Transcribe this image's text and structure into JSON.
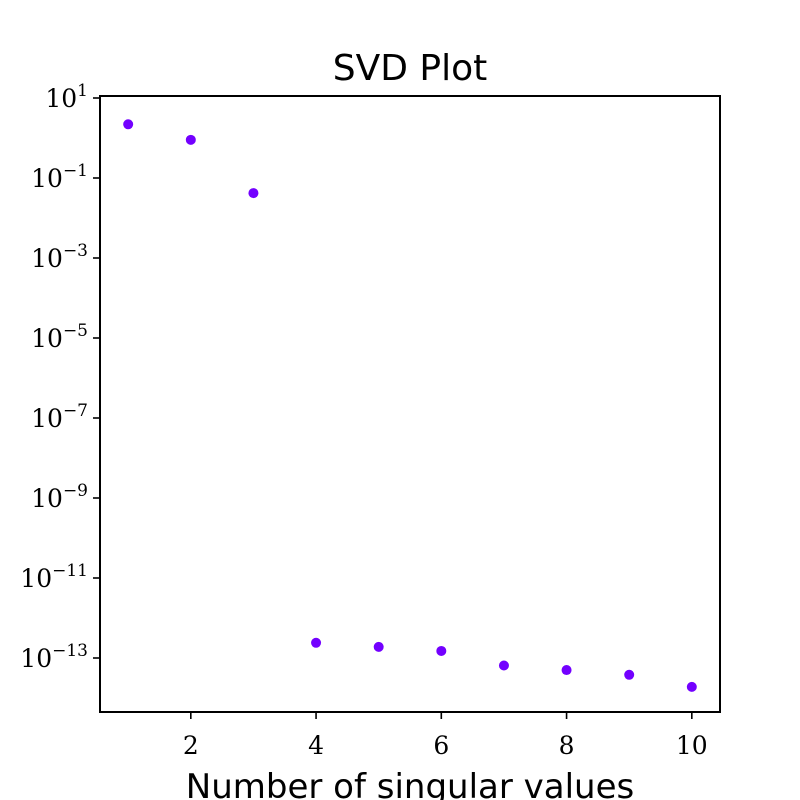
{
  "chart_data": {
    "type": "scatter",
    "title": "SVD Plot",
    "xlabel": "Number of singular values",
    "ylabel": "",
    "y_scale": "log",
    "xlim": [
      0.55,
      10.45
    ],
    "ylim_log10": [
      -14.35,
      1.05
    ],
    "x_ticks": [
      2,
      4,
      6,
      8,
      10
    ],
    "y_tick_exponents": [
      1,
      -1,
      -3,
      -5,
      -7,
      -9,
      -11,
      -13
    ],
    "y_tick_base": "10",
    "marker_color": "#7300ff",
    "grid": false,
    "x": [
      1,
      2,
      3,
      4,
      5,
      6,
      7,
      8,
      9,
      10
    ],
    "y": [
      2.2,
      0.9,
      0.042,
      2.4e-13,
      1.9e-13,
      1.5e-13,
      6.5e-14,
      5e-14,
      3.8e-14,
      1.9e-14
    ]
  }
}
